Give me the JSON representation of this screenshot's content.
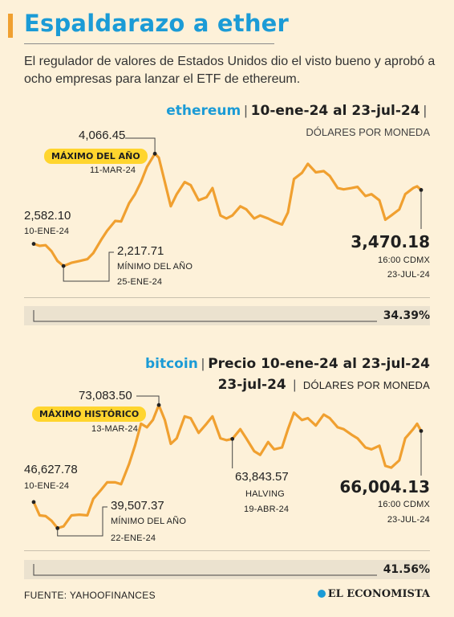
{
  "header": {
    "title": "Espaldarazo a ether",
    "intro": "El regulador de valores de Estados Unidos dio el visto bueno y aprobó a ocho empresas para lanzar el ETF de ethereum."
  },
  "colors": {
    "line": "#f0a030",
    "accent": "#1b9bd6",
    "badge": "#ffd52e"
  },
  "chart_data": [
    {
      "type": "line",
      "name": "ethereum",
      "period": "10-ene-24 al 23-jul-24",
      "unit": "DÓLARES POR MONEDA",
      "x_range": [
        "2024-01-10",
        "2024-07-23"
      ],
      "ylim": [
        2100,
        4150
      ],
      "series": [
        {
          "values": [
            [
              "2024-01-10",
              2582.1
            ],
            [
              "2024-01-13",
              2550
            ],
            [
              "2024-01-16",
              2560
            ],
            [
              "2024-01-19",
              2460
            ],
            [
              "2024-01-22",
              2300
            ],
            [
              "2024-01-25",
              2217.71
            ],
            [
              "2024-01-29",
              2270
            ],
            [
              "2024-02-02",
              2300
            ],
            [
              "2024-02-06",
              2330
            ],
            [
              "2024-02-09",
              2430
            ],
            [
              "2024-02-13",
              2650
            ],
            [
              "2024-02-16",
              2800
            ],
            [
              "2024-02-20",
              2960
            ],
            [
              "2024-02-23",
              2950
            ],
            [
              "2024-02-27",
              3250
            ],
            [
              "2024-03-01",
              3400
            ],
            [
              "2024-03-04",
              3600
            ],
            [
              "2024-03-07",
              3850
            ],
            [
              "2024-03-11",
              4066.45
            ],
            [
              "2024-03-13",
              4000
            ],
            [
              "2024-03-16",
              3600
            ],
            [
              "2024-03-19",
              3200
            ],
            [
              "2024-03-22",
              3400
            ],
            [
              "2024-03-26",
              3600
            ],
            [
              "2024-03-29",
              3550
            ],
            [
              "2024-04-02",
              3300
            ],
            [
              "2024-04-06",
              3350
            ],
            [
              "2024-04-09",
              3500
            ],
            [
              "2024-04-13",
              3050
            ],
            [
              "2024-04-16",
              3000
            ],
            [
              "2024-04-19",
              3050
            ],
            [
              "2024-04-23",
              3200
            ],
            [
              "2024-04-26",
              3150
            ],
            [
              "2024-04-30",
              3000
            ],
            [
              "2024-05-03",
              3050
            ],
            [
              "2024-05-07",
              3000
            ],
            [
              "2024-05-10",
              2950
            ],
            [
              "2024-05-14",
              2900
            ],
            [
              "2024-05-17",
              3100
            ],
            [
              "2024-05-20",
              3650
            ],
            [
              "2024-05-24",
              3750
            ],
            [
              "2024-05-27",
              3900
            ],
            [
              "2024-05-31",
              3760
            ],
            [
              "2024-06-04",
              3780
            ],
            [
              "2024-06-07",
              3700
            ],
            [
              "2024-06-11",
              3500
            ],
            [
              "2024-06-14",
              3480
            ],
            [
              "2024-06-18",
              3500
            ],
            [
              "2024-06-21",
              3520
            ],
            [
              "2024-06-25",
              3370
            ],
            [
              "2024-06-28",
              3400
            ],
            [
              "2024-07-02",
              3300
            ],
            [
              "2024-07-05",
              2980
            ],
            [
              "2024-07-08",
              3050
            ],
            [
              "2024-07-12",
              3150
            ],
            [
              "2024-07-15",
              3400
            ],
            [
              "2024-07-19",
              3500
            ],
            [
              "2024-07-21",
              3530
            ],
            [
              "2024-07-23",
              3470.18
            ]
          ]
        }
      ],
      "annotations": {
        "start": {
          "value": "2,582.10",
          "date": "10-ENE-24"
        },
        "max": {
          "badge": "MÁXIMO DEL AÑO",
          "value": "4,066.45",
          "date": "11-MAR-24"
        },
        "min": {
          "value": "2,217.71",
          "label": "MÍNIMO DEL AÑO",
          "date": "25-ENE-24"
        },
        "last": {
          "value": "3,470.18",
          "time": "16:00 CDMX",
          "date": "23-JUL-24"
        }
      },
      "change": {
        "value": 34.39,
        "label": "34.39%"
      }
    },
    {
      "type": "line",
      "name": "bitcoin",
      "period": "Precio 10-ene-24 al 23-jul-24",
      "unit": "DÓLARES POR MONEDA",
      "x_range": [
        "2024-01-10",
        "2024-07-23"
      ],
      "ylim": [
        38500,
        74000
      ],
      "series": [
        {
          "values": [
            [
              "2024-01-10",
              46627.78
            ],
            [
              "2024-01-13",
              43000
            ],
            [
              "2024-01-16",
              42800
            ],
            [
              "2024-01-19",
              41500
            ],
            [
              "2024-01-22",
              39507.37
            ],
            [
              "2024-01-25",
              40000
            ],
            [
              "2024-01-29",
              43000
            ],
            [
              "2024-02-02",
              43200
            ],
            [
              "2024-02-06",
              43000
            ],
            [
              "2024-02-09",
              47500
            ],
            [
              "2024-02-13",
              50000
            ],
            [
              "2024-02-16",
              52000
            ],
            [
              "2024-02-20",
              52000
            ],
            [
              "2024-02-23",
              51500
            ],
            [
              "2024-02-27",
              57000
            ],
            [
              "2024-03-01",
              62000
            ],
            [
              "2024-03-04",
              68000
            ],
            [
              "2024-03-07",
              67000
            ],
            [
              "2024-03-10",
              69000
            ],
            [
              "2024-03-13",
              73083.5
            ],
            [
              "2024-03-16",
              69000
            ],
            [
              "2024-03-19",
              62500
            ],
            [
              "2024-03-22",
              64000
            ],
            [
              "2024-03-26",
              70000
            ],
            [
              "2024-03-29",
              69500
            ],
            [
              "2024-04-02",
              65500
            ],
            [
              "2024-04-06",
              68000
            ],
            [
              "2024-04-09",
              70000
            ],
            [
              "2024-04-13",
              64000
            ],
            [
              "2024-04-16",
              63500
            ],
            [
              "2024-04-19",
              63843.57
            ],
            [
              "2024-04-23",
              66500
            ],
            [
              "2024-04-26",
              64000
            ],
            [
              "2024-04-30",
              60500
            ],
            [
              "2024-05-03",
              59500
            ],
            [
              "2024-05-07",
              63000
            ],
            [
              "2024-05-10",
              61000
            ],
            [
              "2024-05-14",
              61500
            ],
            [
              "2024-05-17",
              66500
            ],
            [
              "2024-05-20",
              71000
            ],
            [
              "2024-05-24",
              69000
            ],
            [
              "2024-05-27",
              69500
            ],
            [
              "2024-05-31",
              67500
            ],
            [
              "2024-06-04",
              70500
            ],
            [
              "2024-06-07",
              69500
            ],
            [
              "2024-06-11",
              67000
            ],
            [
              "2024-06-14",
              66500
            ],
            [
              "2024-06-18",
              65000
            ],
            [
              "2024-06-21",
              64000
            ],
            [
              "2024-06-25",
              61500
            ],
            [
              "2024-06-28",
              61000
            ],
            [
              "2024-07-02",
              62000
            ],
            [
              "2024-07-05",
              56500
            ],
            [
              "2024-07-08",
              56000
            ],
            [
              "2024-07-12",
              58000
            ],
            [
              "2024-07-15",
              64000
            ],
            [
              "2024-07-19",
              66500
            ],
            [
              "2024-07-21",
              68000
            ],
            [
              "2024-07-23",
              66004.13
            ]
          ]
        }
      ],
      "annotations": {
        "start": {
          "value": "46,627.78",
          "date": "10-ENE-24"
        },
        "max": {
          "badge": "MÁXIMO HISTÓRICO",
          "value": "73,083.50",
          "date": "13-MAR-24"
        },
        "min": {
          "value": "39,507.37",
          "label": "MÍNIMO DEL AÑO",
          "date": "22-ENE-24"
        },
        "halving": {
          "value": "63,843.57",
          "label": "HALVING",
          "date": "19-ABR-24"
        },
        "last": {
          "value": "66,004.13",
          "time": "16:00 CDMX",
          "date": "23-JUL-24"
        }
      },
      "change": {
        "value": 41.56,
        "label": "41.56%"
      }
    }
  ],
  "footer": {
    "source": "FUENTE: YAHOOFINANCES",
    "brand": "EL ECONOMISTA"
  }
}
